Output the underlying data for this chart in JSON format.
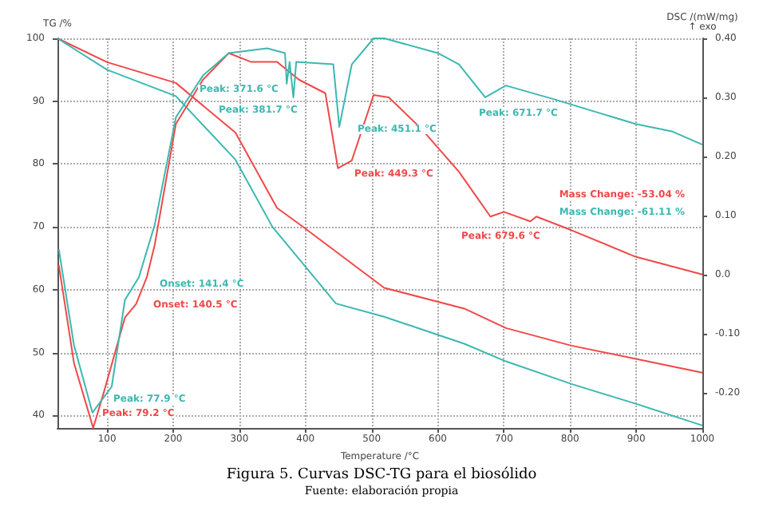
{
  "chart_data": {
    "type": "line",
    "title": "Figura 5. Curvas DSC-TG para el biosólido",
    "subtitle": "Fuente: elaboración propia",
    "xlabel": "Temperature /°C",
    "ylabel": "TG /%",
    "y2label": "DSC /(mW/mg)\n↑ exo",
    "xlim": [
      25,
      1000
    ],
    "xticks": [
      100,
      200,
      300,
      400,
      500,
      600,
      700,
      800,
      900,
      1000
    ],
    "ylim": [
      38,
      100
    ],
    "yticks": [
      40,
      50,
      60,
      70,
      80,
      90,
      100
    ],
    "y2lim": [
      -0.26,
      0.4
    ],
    "y2ticks": [
      {
        "value": -0.2,
        "label": "-0.20"
      },
      {
        "value": -0.1,
        "label": "-0.10"
      },
      {
        "value": 0,
        "label": "0.0"
      },
      {
        "value": 0.1,
        "label": "0.10"
      },
      {
        "value": 0.2,
        "label": "0.20"
      },
      {
        "value": 0.3,
        "label": "0.30"
      },
      {
        "value": 0.4,
        "label": "0.40"
      }
    ],
    "grid": true,
    "marker": "none",
    "line_style": "solid",
    "series": [
      {
        "color": "#f04848",
        "x": [
          25,
          100,
          204,
          294,
          357,
          390,
          519,
          640,
          703,
          802,
          904,
          1000
        ],
        "values": [
          100,
          96.2,
          92.9,
          85,
          73,
          70.5,
          60.3,
          57,
          53.9,
          51.1,
          48.9,
          46.8
        ]
      },
      {
        "color": "#3cb8b0",
        "x": [
          25,
          100,
          204,
          294,
          350,
          446,
          519,
          640,
          703,
          802,
          904,
          1000
        ],
        "values": [
          100,
          95,
          90.8,
          80.7,
          70,
          57.8,
          55.7,
          51.4,
          48.6,
          45,
          41.7,
          38.4
        ]
      },
      {
        "color": "#f04848",
        "axis": "y2",
        "x": [
          27,
          50,
          79,
          95,
          127,
          144,
          160,
          172,
          204,
          245,
          284,
          318,
          357,
          390,
          430,
          449,
          470,
          503,
          526,
          575,
          632,
          679.6,
          700,
          740,
          749,
          802,
          899,
          1000
        ],
        "values": [
          0.016,
          -0.15,
          -0.26,
          -0.2,
          -0.073,
          -0.05,
          -0.005,
          0.05,
          0.255,
          0.33,
          0.375,
          0.36,
          0.36,
          0.33,
          0.307,
          0.18,
          0.193,
          0.304,
          0.3,
          0.247,
          0.174,
          0.098,
          0.106,
          0.09,
          0.098,
          0.075,
          0.03,
          0.0
        ]
      },
      {
        "color": "#3cb8b0",
        "axis": "y2",
        "x": [
          27,
          50,
          77.9,
          107,
          127,
          148,
          172,
          204,
          245,
          284,
          342,
          369,
          371.6,
          376,
          381.7,
          386,
          442,
          451.1,
          470,
          503,
          519,
          600,
          632,
          671.7,
          703,
          778,
          899,
          955,
          1000
        ],
        "values": [
          0.043,
          -0.12,
          -0.234,
          -0.19,
          -0.043,
          -0.005,
          0.084,
          0.266,
          0.337,
          0.375,
          0.383,
          0.375,
          0.323,
          0.36,
          0.3,
          0.36,
          0.356,
          0.25,
          0.356,
          0.4,
          0.4,
          0.375,
          0.356,
          0.3,
          0.32,
          0.296,
          0.255,
          0.242,
          0.22
        ]
      }
    ],
    "annotations": [
      "Peak: 371.6 °C",
      "Peak: 381.7 °C",
      "Peak: 451.1 °C",
      "Peak: 449.3 °C",
      "Peak: 671.7 °C",
      "Peak: 679.6 °C",
      "Onset: 141.4 °C",
      "Onset: 140.5 °C",
      "Peak: 77.9 °C",
      "Peak: 79.2 °C",
      "Mass Change: -53.04 %",
      "Mass Change: -61.11 %"
    ]
  }
}
